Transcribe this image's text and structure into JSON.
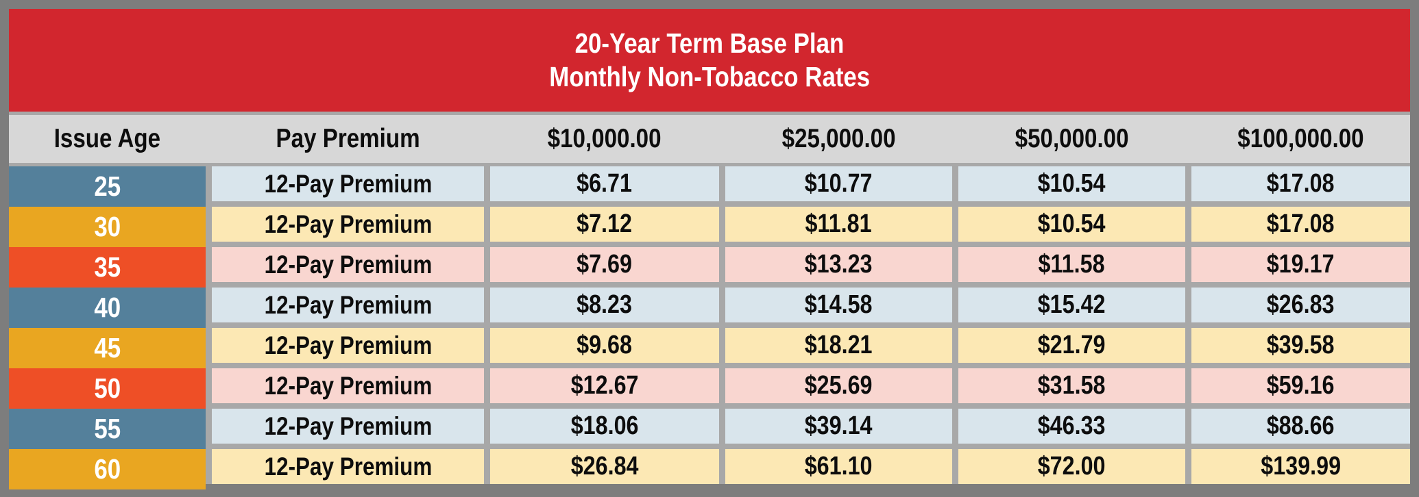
{
  "banner": {
    "line1": "20-Year Term Base Plan",
    "line2": "Monthly Non-Tobacco Rates"
  },
  "table": {
    "columns": [
      "Issue Age",
      "Pay Premium",
      "$10,000.00",
      "$25,000.00",
      "$50,000.00",
      "$100,000.00"
    ],
    "rows": [
      {
        "age": "25",
        "scheme": "blue",
        "label": "12-Pay Premium",
        "values": [
          "$6.71",
          "$10.77",
          "$10.54",
          "$17.08"
        ]
      },
      {
        "age": "30",
        "scheme": "gold",
        "label": "12-Pay Premium",
        "values": [
          "$7.12",
          "$11.81",
          "$10.54",
          "$17.08"
        ]
      },
      {
        "age": "35",
        "scheme": "red",
        "label": "12-Pay Premium",
        "values": [
          "$7.69",
          "$13.23",
          "$11.58",
          "$19.17"
        ]
      },
      {
        "age": "40",
        "scheme": "blue",
        "label": "12-Pay Premium",
        "values": [
          "$8.23",
          "$14.58",
          "$15.42",
          "$26.83"
        ]
      },
      {
        "age": "45",
        "scheme": "gold",
        "label": "12-Pay Premium",
        "values": [
          "$9.68",
          "$18.21",
          "$21.79",
          "$39.58"
        ]
      },
      {
        "age": "50",
        "scheme": "red",
        "label": "12-Pay Premium",
        "values": [
          "$12.67",
          "$25.69",
          "$31.58",
          "$59.16"
        ]
      },
      {
        "age": "55",
        "scheme": "blue",
        "label": "12-Pay Premium",
        "values": [
          "$18.06",
          "$39.14",
          "$46.33",
          "$88.66"
        ]
      },
      {
        "age": "60",
        "scheme": "gold",
        "label": "12-Pay Premium",
        "values": [
          "$26.84",
          "$61.10",
          "$72.00",
          "$139.99"
        ]
      }
    ]
  },
  "colors": {
    "banner_red": "#d2262e",
    "frame_gray": "#7d7d7d",
    "grid_gray": "#a8a8a8",
    "header_gray": "#d7d7d7",
    "age_blue": "#54809b",
    "age_gold": "#e9a621",
    "age_red": "#ee4f26",
    "row_blue": "#d9e5ec",
    "row_gold": "#fce8b4",
    "row_red": "#f9d6d0",
    "text_dark": "#0d0d0d",
    "text_light": "#ffffff"
  }
}
